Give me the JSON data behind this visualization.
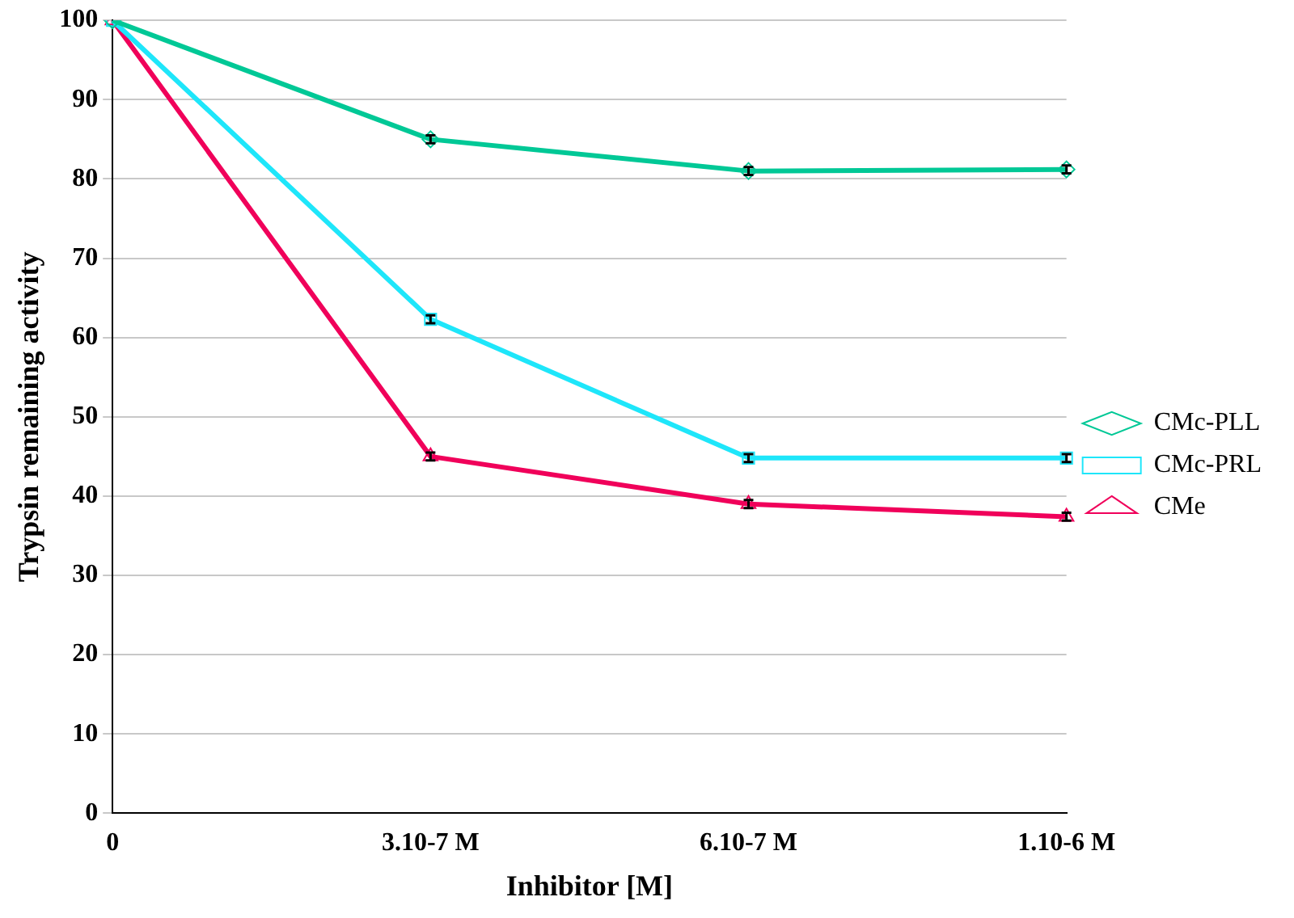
{
  "chart_data": {
    "type": "line",
    "xlabel": "Inhibitor [M]",
    "ylabel": "Trypsin remaining activity",
    "categories": [
      "0",
      "3.10-7 M",
      "6.10-7 M",
      "1.10-6 M"
    ],
    "series": [
      {
        "name": "CMc-PLL",
        "color": "#00c896",
        "values": [
          100,
          85,
          81,
          81.2
        ],
        "marker": "diamond",
        "errors": [
          null,
          0.5,
          0.5,
          0.5
        ]
      },
      {
        "name": "CMc-PRL",
        "color": "#1ee6fa",
        "values": [
          100,
          62.3,
          44.8,
          44.8
        ],
        "marker": "square",
        "errors": [
          null,
          0.5,
          0.5,
          0.5
        ]
      },
      {
        "name": "CMe",
        "color": "#f0005a",
        "values": [
          100,
          45,
          39,
          37.4
        ],
        "marker": "triangle",
        "errors": [
          null,
          0.5,
          0.5,
          0.5
        ]
      }
    ],
    "ylim": [
      0,
      100
    ],
    "yticks": [
      0,
      10,
      20,
      30,
      40,
      50,
      60,
      70,
      80,
      90,
      100
    ],
    "grid": "y",
    "legend": "right",
    "line_style": "solid"
  }
}
